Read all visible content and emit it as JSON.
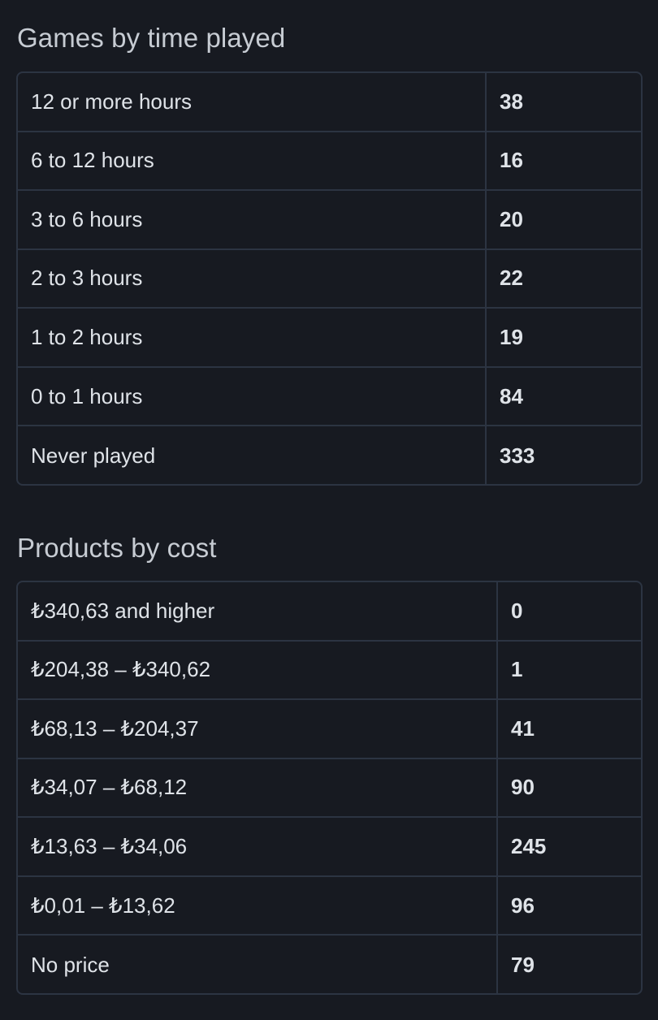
{
  "games_by_time": {
    "title": "Games by time played",
    "rows": [
      {
        "label": "12 or more hours",
        "value": "38"
      },
      {
        "label": "6 to 12 hours",
        "value": "16"
      },
      {
        "label": "3 to 6 hours",
        "value": "20"
      },
      {
        "label": "2 to 3 hours",
        "value": "22"
      },
      {
        "label": "1 to 2 hours",
        "value": "19"
      },
      {
        "label": "0 to 1 hours",
        "value": "84"
      },
      {
        "label": "Never played",
        "value": "333"
      }
    ]
  },
  "products_by_cost": {
    "title": "Products by cost",
    "rows": [
      {
        "label": "₺340,63 and higher",
        "value": "0"
      },
      {
        "label": "₺204,38 – ₺340,62",
        "value": "1"
      },
      {
        "label": "₺68,13 – ₺204,37",
        "value": "41"
      },
      {
        "label": "₺34,07 – ₺68,12",
        "value": "90"
      },
      {
        "label": "₺13,63 – ₺34,06",
        "value": "245"
      },
      {
        "label": "₺0,01 – ₺13,62",
        "value": "96"
      },
      {
        "label": "No price",
        "value": "79"
      }
    ]
  }
}
